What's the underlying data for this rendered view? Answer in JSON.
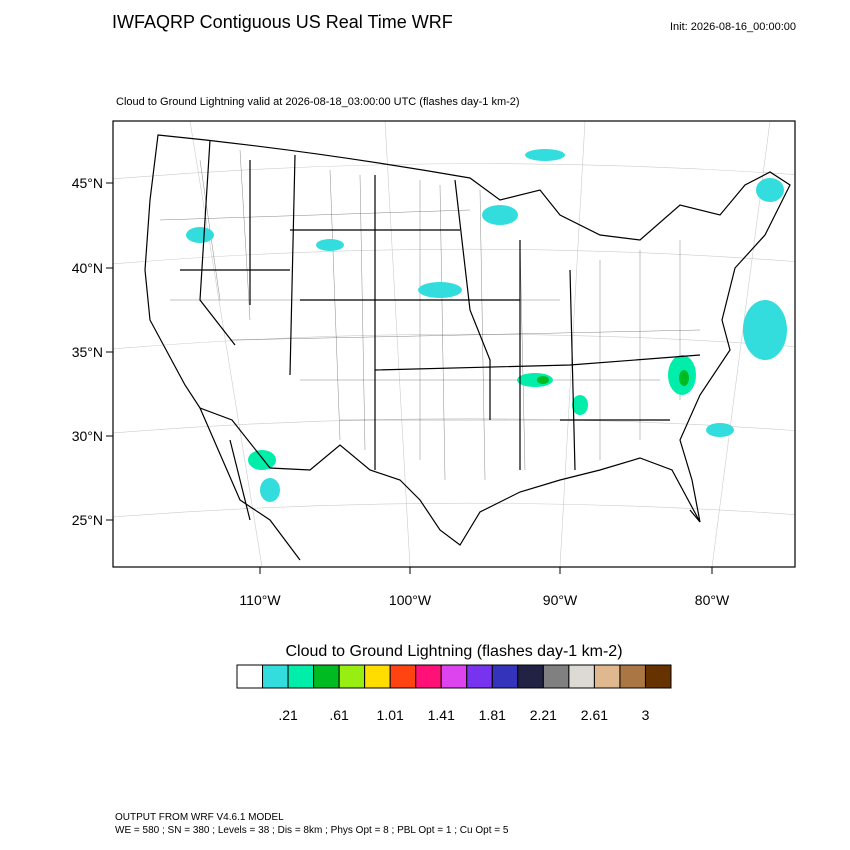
{
  "header": {
    "title": "IWFAQRP Contiguous US Real Time WRF",
    "init": "Init: 2026-08-16_00:00:00"
  },
  "map": {
    "subtitle": "Cloud to Ground Lightning valid at 2026-08-18_03:00:00 UTC   (flashes day-1 km-2)",
    "lat_labels": [
      "45°N",
      "40°N",
      "35°N",
      "30°N",
      "25°N"
    ],
    "lon_labels": [
      "110°W",
      "100°W",
      "90°W",
      "80°W"
    ]
  },
  "colorbar": {
    "title": "Cloud to Ground Lightning  (flashes day-1 km-2)",
    "colors": [
      "#ffffff",
      "#33dddd",
      "#00eeaa",
      "#00bb22",
      "#99ee11",
      "#ffdd00",
      "#ff4411",
      "#ff1177",
      "#dd44ee",
      "#7733ee",
      "#3333bb",
      "#222244",
      "#808080",
      "#dddad5",
      "#e0b890",
      "#aa7744",
      "#663300"
    ],
    "labels": [
      ".21",
      ".61",
      "1.01",
      "1.41",
      "1.81",
      "2.21",
      "2.61",
      "3"
    ]
  },
  "footer": {
    "lines": [
      "OUTPUT FROM WRF V4.6.1 MODEL",
      "WE = 580 ; SN = 380 ; Levels = 38 ; Dis = 8km ; Phys Opt = 8 ; PBL Opt = 1 ; Cu Opt = 5"
    ]
  }
}
